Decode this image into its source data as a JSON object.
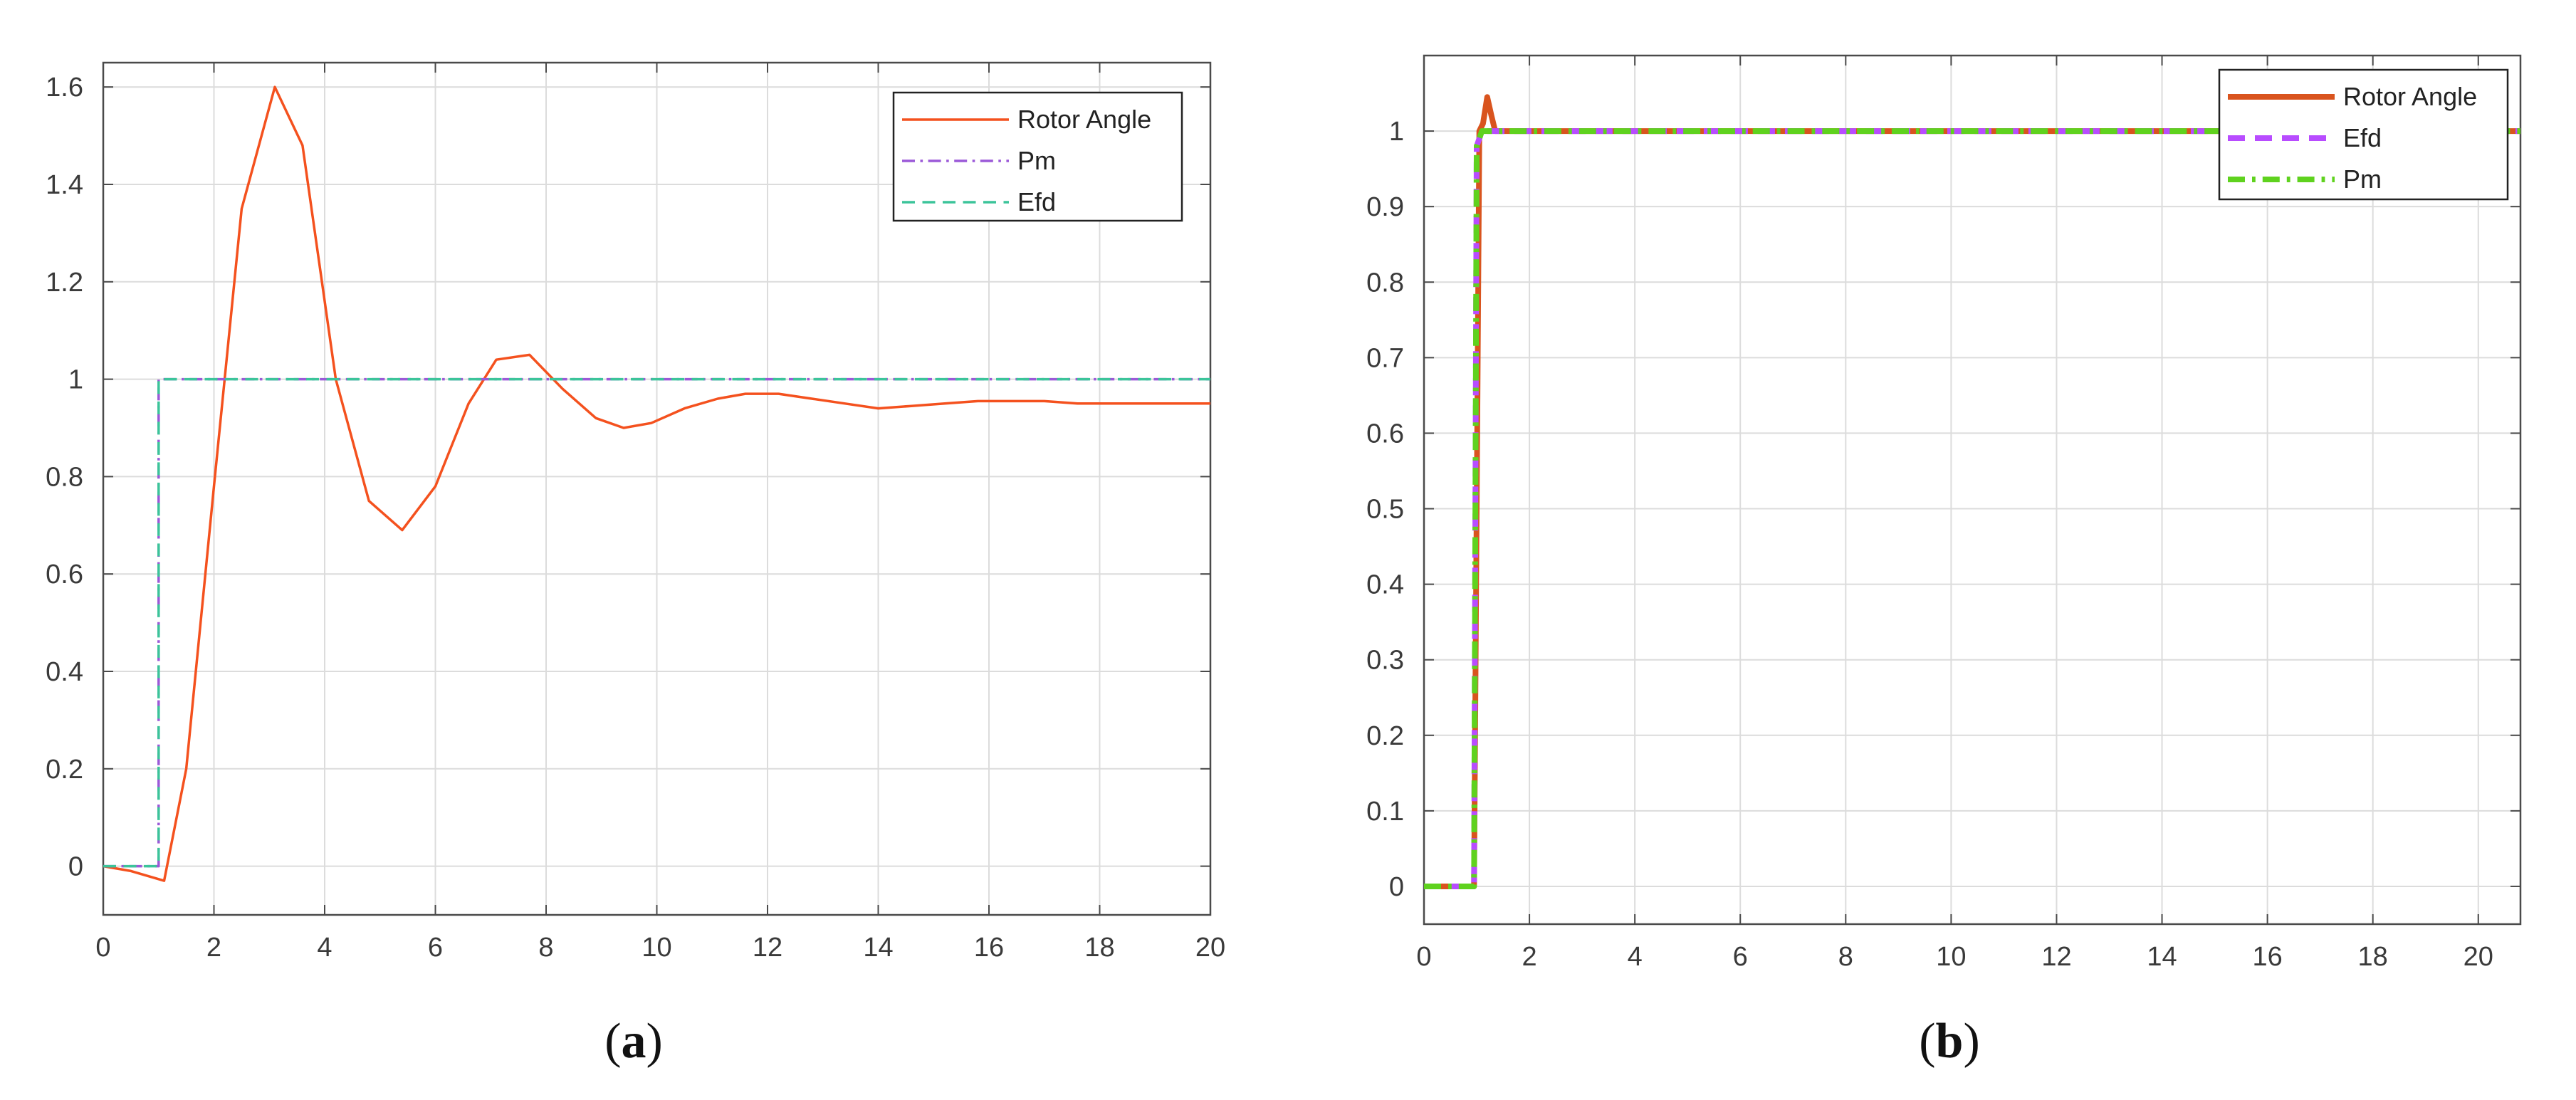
{
  "chart_data": [
    {
      "type": "line",
      "caption": "a",
      "xlim": [
        0,
        20
      ],
      "ylim": [
        -0.1,
        1.65
      ],
      "xticks": [
        "0",
        "2",
        "4",
        "6",
        "8",
        "10",
        "12",
        "14",
        "16",
        "18",
        "20"
      ],
      "yticks": [
        "0",
        "0.2",
        "0.4",
        "0.6",
        "0.8",
        "1",
        "1.2",
        "1.4",
        "1.6"
      ],
      "grid": true,
      "legend_position": "top-right",
      "series": [
        {
          "name": "Rotor Angle",
          "color": "#f4511e",
          "style": "solid",
          "x": [
            0,
            0.5,
            1.1,
            1.5,
            2.0,
            2.5,
            3.1,
            3.6,
            4.2,
            4.8,
            5.4,
            6.0,
            6.6,
            7.1,
            7.7,
            8.3,
            8.9,
            9.4,
            9.9,
            10.5,
            11.1,
            11.6,
            12.2,
            12.8,
            13.4,
            14.0,
            14.6,
            15.2,
            15.8,
            16.4,
            17.0,
            17.6,
            18.2,
            18.8,
            19.4,
            20.0
          ],
          "y": [
            0,
            -0.01,
            -0.03,
            0.2,
            0.78,
            1.35,
            1.6,
            1.48,
            1.0,
            0.75,
            0.69,
            0.78,
            0.95,
            1.04,
            1.05,
            0.98,
            0.92,
            0.9,
            0.91,
            0.94,
            0.96,
            0.97,
            0.97,
            0.96,
            0.95,
            0.94,
            0.945,
            0.95,
            0.955,
            0.955,
            0.955,
            0.95,
            0.95,
            0.95,
            0.95,
            0.95
          ]
        },
        {
          "name": "Pm",
          "color": "#9b59d8",
          "style": "dashdot",
          "x": [
            0,
            1.0,
            1.0,
            20
          ],
          "y": [
            0,
            0,
            1,
            1
          ]
        },
        {
          "name": "Efd",
          "color": "#3cc49a",
          "style": "dashed",
          "x": [
            0,
            1.0,
            1.0,
            20
          ],
          "y": [
            0,
            0,
            1,
            1
          ]
        }
      ]
    },
    {
      "type": "line",
      "caption": "b",
      "xlim": [
        0,
        20.8
      ],
      "ylim": [
        -0.05,
        1.1
      ],
      "xticks": [
        "0",
        "2",
        "4",
        "6",
        "8",
        "10",
        "12",
        "14",
        "16",
        "18",
        "20"
      ],
      "yticks": [
        "0",
        "0.1",
        "0.2",
        "0.3",
        "0.4",
        "0.5",
        "0.6",
        "0.7",
        "0.8",
        "0.9",
        "1"
      ],
      "grid": true,
      "legend_position": "top-right",
      "series": [
        {
          "name": "Rotor Angle",
          "color": "#d9541e",
          "style": "solid",
          "x": [
            0,
            0.95,
            1.05,
            1.12,
            1.2,
            1.28,
            1.35,
            1.5,
            20.8
          ],
          "y": [
            0,
            0,
            1.0,
            1.01,
            1.045,
            1.02,
            1.0,
            1.0,
            1.0
          ]
        },
        {
          "name": "Efd",
          "color": "#b84cff",
          "style": "dashed",
          "x": [
            0,
            0.95,
            1.0,
            1.1,
            20.8
          ],
          "y": [
            0,
            0,
            0.98,
            1.0,
            1.0
          ]
        },
        {
          "name": "Pm",
          "color": "#5fd21e",
          "style": "dashdot",
          "x": [
            0,
            0.95,
            1.0,
            1.1,
            20.8
          ],
          "y": [
            0,
            0,
            0.98,
            1.0,
            1.0
          ]
        }
      ]
    }
  ]
}
